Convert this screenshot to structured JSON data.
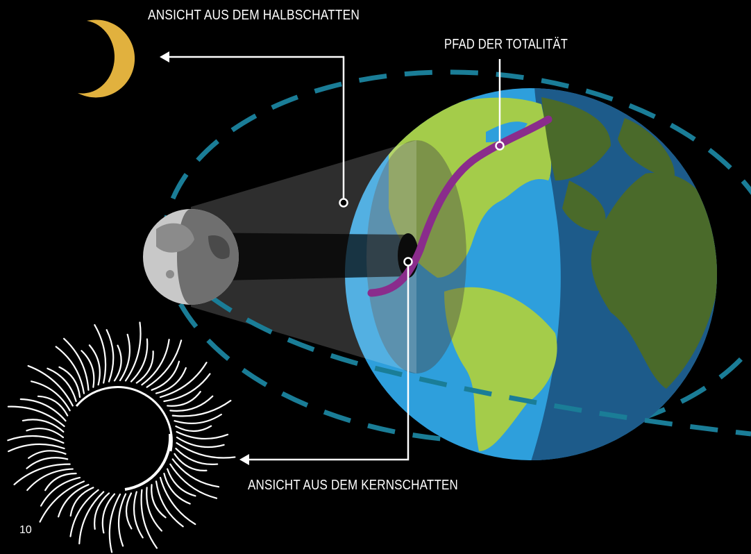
{
  "labels": {
    "penumbra_view": "ANSICHT AUS DEM HALBSCHATTEN",
    "path_of_totality": "PFAD DER TOTALITÄT",
    "umbra_view": "ANSICHT AUS DEM KERNSCHATTEN"
  },
  "page_number": "10"
}
